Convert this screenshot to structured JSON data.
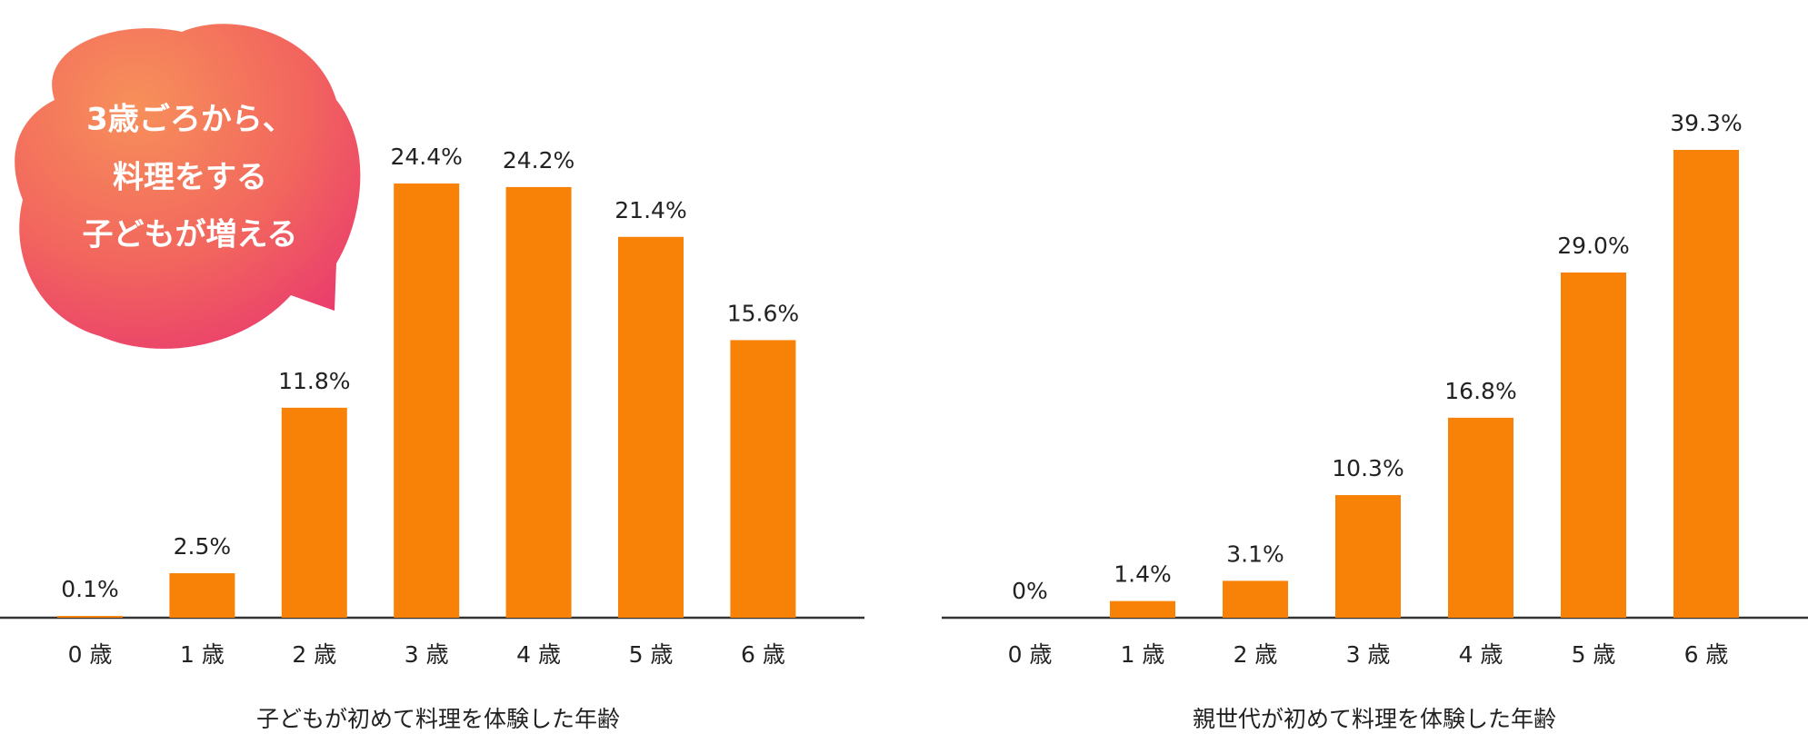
{
  "chart_data": [
    {
      "type": "bar",
      "title": "子どもが初めて料理を体験した年齢",
      "annotation": [
        "3歳ごろから、",
        "料理をする",
        "子どもが増える"
      ],
      "categories": [
        "0 歳",
        "1 歳",
        "2 歳",
        "3 歳",
        "4 歳",
        "5 歳",
        "6 歳"
      ],
      "values": [
        0.1,
        2.5,
        11.8,
        24.4,
        24.2,
        21.4,
        15.6
      ],
      "value_labels": [
        "0.1%",
        "2.5%",
        "11.8%",
        "24.4%",
        "24.2%",
        "21.4%",
        "15.6%"
      ],
      "color": "#f88207"
    },
    {
      "type": "bar",
      "title": "親世代が初めて料理を体験した年齢",
      "categories": [
        "0 歳",
        "1 歳",
        "2 歳",
        "3 歳",
        "4 歳",
        "5 歳",
        "6 歳"
      ],
      "values": [
        0,
        1.4,
        3.1,
        10.3,
        16.8,
        29.0,
        39.3
      ],
      "value_labels": [
        "0%",
        "1.4%",
        "3.1%",
        "10.3%",
        "16.8%",
        "29.0%",
        "39.3%"
      ],
      "color": "#f88207"
    }
  ]
}
